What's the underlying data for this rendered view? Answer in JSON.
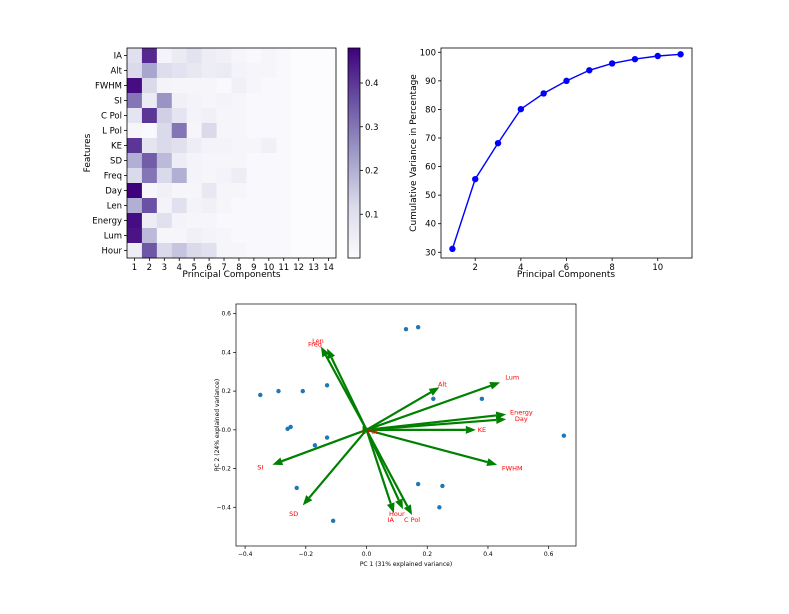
{
  "chart_data": [
    {
      "type": "heatmap",
      "title": "",
      "xlabel": "Principal Components",
      "ylabel": "Features",
      "x_categories": [
        "1",
        "2",
        "3",
        "4",
        "5",
        "6",
        "7",
        "8",
        "9",
        "10",
        "11",
        "12",
        "13",
        "14"
      ],
      "y_categories": [
        "IA",
        "Alt",
        "FWHM",
        "SI",
        "C Pol",
        "L Pol",
        "KE",
        "SD",
        "Freq",
        "Day",
        "Len",
        "Energy",
        "Lum",
        "Hour"
      ],
      "values": [
        [
          0.1,
          0.42,
          0.03,
          0.06,
          0.09,
          0.05,
          0.04,
          0.02,
          0.01,
          0.02,
          0.01,
          0,
          0,
          0
        ],
        [
          0.12,
          0.22,
          0.11,
          0.09,
          0.07,
          0.05,
          0.06,
          0.03,
          0.02,
          0.02,
          0.01,
          0,
          0,
          0
        ],
        [
          0.46,
          0.12,
          0.03,
          0.02,
          0.02,
          0.02,
          0.01,
          0.04,
          0.02,
          0.01,
          0.01,
          0,
          0,
          0
        ],
        [
          0.3,
          0.06,
          0.25,
          0.04,
          0.03,
          0.02,
          0.03,
          0.02,
          0.01,
          0.01,
          0.01,
          0,
          0,
          0
        ],
        [
          0.08,
          0.4,
          0.14,
          0.08,
          0.03,
          0.04,
          0.02,
          0.02,
          0.01,
          0.01,
          0.01,
          0,
          0,
          0
        ],
        [
          0.02,
          0.01,
          0.12,
          0.3,
          0.02,
          0.12,
          0.02,
          0.02,
          0.01,
          0.01,
          0.01,
          0,
          0,
          0
        ],
        [
          0.4,
          0.08,
          0.12,
          0.1,
          0.05,
          0.03,
          0.03,
          0.02,
          0.02,
          0.04,
          0.01,
          0,
          0,
          0
        ],
        [
          0.2,
          0.34,
          0.18,
          0.05,
          0.03,
          0.02,
          0.02,
          0.02,
          0.01,
          0.01,
          0.01,
          0,
          0,
          0
        ],
        [
          0.12,
          0.3,
          0.12,
          0.2,
          0.03,
          0.02,
          0.03,
          0.05,
          0.01,
          0.01,
          0.01,
          0,
          0,
          0
        ],
        [
          0.48,
          0.02,
          0.04,
          0.02,
          0.02,
          0.07,
          0.02,
          0.02,
          0.01,
          0.01,
          0.01,
          0,
          0,
          0
        ],
        [
          0.2,
          0.36,
          0.03,
          0.1,
          0.03,
          0.04,
          0.02,
          0.01,
          0.01,
          0.01,
          0.01,
          0,
          0,
          0
        ],
        [
          0.46,
          0.05,
          0.1,
          0.03,
          0.02,
          0.02,
          0.01,
          0.01,
          0.01,
          0.01,
          0.01,
          0,
          0,
          0
        ],
        [
          0.45,
          0.18,
          0.02,
          0.02,
          0.04,
          0.03,
          0.02,
          0.01,
          0.01,
          0.01,
          0.01,
          0,
          0,
          0
        ],
        [
          0.05,
          0.35,
          0.12,
          0.16,
          0.12,
          0.1,
          0.02,
          0.02,
          0.01,
          0.01,
          0.01,
          0,
          0,
          0
        ]
      ],
      "colorbar": {
        "vmin": 0,
        "vmax": 0.48,
        "ticks": [
          0.1,
          0.2,
          0.3,
          0.4
        ],
        "tick_labels": [
          "0.1",
          "0.2",
          "0.3",
          "0.4"
        ]
      },
      "colormap": "Purples"
    },
    {
      "type": "line",
      "title": "",
      "xlabel": "Principal Components",
      "ylabel": "Cumulative Variance in Percentage",
      "x": [
        1,
        2,
        3,
        4,
        5,
        6,
        7,
        8,
        9,
        10,
        11
      ],
      "y": [
        31.2,
        55.6,
        68.2,
        80.1,
        85.6,
        90.0,
        93.7,
        96.1,
        97.6,
        98.7,
        99.3
      ],
      "xlim": [
        0.5,
        11.5
      ],
      "ylim": [
        28,
        101.5
      ],
      "xticks": [
        2,
        4,
        6,
        8,
        10
      ],
      "xtick_labels": [
        "2",
        "4",
        "6",
        "8",
        "10"
      ],
      "yticks": [
        30,
        40,
        50,
        60,
        70,
        80,
        90,
        100
      ],
      "ytick_labels": [
        "30",
        "40",
        "50",
        "60",
        "70",
        "80",
        "90",
        "100"
      ],
      "color": "#0000ff",
      "markers": true
    },
    {
      "type": "scatter",
      "title": "",
      "xlabel": "PC 1 (31% explained variance)",
      "ylabel": "PC 2 (24% explained variance)",
      "xlim": [
        -0.43,
        0.69
      ],
      "ylim": [
        -0.6,
        0.65
      ],
      "xticks": [
        -0.4,
        -0.2,
        0.0,
        0.2,
        0.4,
        0.6
      ],
      "xtick_labels": [
        "−0.4",
        "−0.2",
        "0.0",
        "0.2",
        "0.4",
        "0.6"
      ],
      "yticks": [
        -0.4,
        -0.2,
        0.0,
        0.2,
        0.4,
        0.6
      ],
      "ytick_labels": [
        "−0.4",
        "−0.2",
        "0.0",
        "0.2",
        "0.4",
        "0.6"
      ],
      "points_x": [
        -0.35,
        -0.29,
        -0.21,
        -0.26,
        -0.25,
        -0.17,
        -0.13,
        -0.13,
        -0.23,
        -0.11,
        0.13,
        0.17,
        0.22,
        0.38,
        0.65,
        0.17,
        0.25,
        0.24
      ],
      "points_y": [
        0.18,
        0.2,
        0.2,
        0.005,
        0.015,
        -0.08,
        -0.04,
        0.23,
        -0.3,
        -0.47,
        0.52,
        0.53,
        0.16,
        0.16,
        -0.03,
        -0.28,
        -0.29,
        -0.4
      ],
      "point_color": "#1f77b4",
      "arrow_color": "#008000",
      "loadings": [
        {
          "label": "Len",
          "x": -0.15,
          "y": 0.43,
          "lx": -0.16,
          "ly": 0.46
        },
        {
          "label": "Freq",
          "x": -0.13,
          "y": 0.42,
          "lx": -0.17,
          "ly": 0.44
        },
        {
          "label": "Alt",
          "x": 0.24,
          "y": 0.22,
          "lx": 0.25,
          "ly": 0.235
        },
        {
          "label": "Lum",
          "x": 0.44,
          "y": 0.245,
          "lx": 0.48,
          "ly": 0.27
        },
        {
          "label": "Energy",
          "x": 0.46,
          "y": 0.08,
          "lx": 0.51,
          "ly": 0.09
        },
        {
          "label": "Day",
          "x": 0.46,
          "y": 0.055,
          "lx": 0.51,
          "ly": 0.055
        },
        {
          "label": "KE",
          "x": 0.36,
          "y": 0.0,
          "lx": 0.38,
          "ly": 0.0
        },
        {
          "label": "FWHM",
          "x": 0.43,
          "y": -0.18,
          "lx": 0.48,
          "ly": -0.2
        },
        {
          "label": "SI",
          "x": -0.31,
          "y": -0.18,
          "lx": -0.35,
          "ly": -0.195
        },
        {
          "label": "SD",
          "x": -0.21,
          "y": -0.39,
          "lx": -0.24,
          "ly": -0.435
        },
        {
          "label": "Hour",
          "x": 0.12,
          "y": -0.41,
          "lx": 0.1,
          "ly": -0.435
        },
        {
          "label": "IA",
          "x": 0.09,
          "y": -0.43,
          "lx": 0.08,
          "ly": -0.465
        },
        {
          "label": "C Pol",
          "x": 0.15,
          "y": -0.44,
          "lx": 0.15,
          "ly": -0.465
        },
        {
          "label": "L Pol",
          "x": 0.02,
          "y": 0.0,
          "lx": 0.01,
          "ly": -0.01
        }
      ]
    }
  ]
}
